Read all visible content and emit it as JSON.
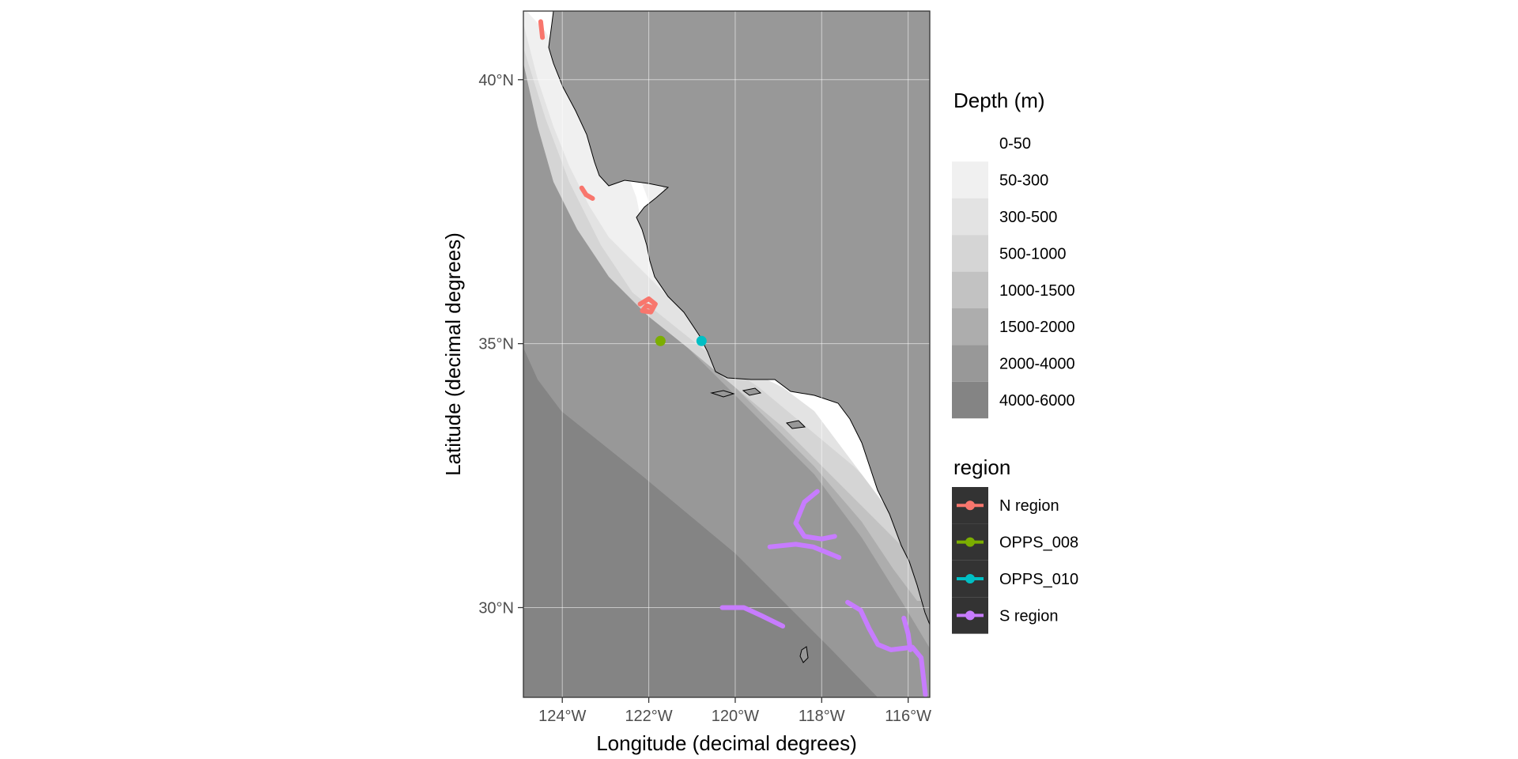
{
  "chart_data": {
    "type": "map",
    "xlabel": "Longitude (decimal degrees)",
    "ylabel": "Latitude (decimal degrees)",
    "xlim": [
      -124.9,
      -115.5
    ],
    "ylim": [
      28.3,
      41.3
    ],
    "x_ticks": [
      {
        "value": -124,
        "label": "124°W"
      },
      {
        "value": -122,
        "label": "122°W"
      },
      {
        "value": -120,
        "label": "120°W"
      },
      {
        "value": -118,
        "label": "118°W"
      },
      {
        "value": -116,
        "label": "116°W"
      }
    ],
    "y_ticks": [
      {
        "value": 30,
        "label": "30°N"
      },
      {
        "value": 35,
        "label": "35°N"
      },
      {
        "value": 40,
        "label": "40°N"
      }
    ],
    "grid": true,
    "depth_legend": {
      "title": "Depth (m)",
      "placement": "right",
      "classes": [
        {
          "label": "0-50",
          "color": "#ffffff"
        },
        {
          "label": "50-300",
          "color": "#f0f0f0"
        },
        {
          "label": "300-500",
          "color": "#e3e3e3"
        },
        {
          "label": "500-1000",
          "color": "#d5d5d5"
        },
        {
          "label": "1000-1500",
          "color": "#c2c2c2"
        },
        {
          "label": "1500-2000",
          "color": "#adadad"
        },
        {
          "label": "2000-4000",
          "color": "#989898"
        },
        {
          "label": "4000-6000",
          "color": "#848484"
        }
      ]
    },
    "land_color": "#989898",
    "region_legend": {
      "title": "region",
      "placement": "right",
      "background": "#333333",
      "series": [
        {
          "name": "N region",
          "color": "#F8766D",
          "tracks": [
            [
              [
                -124.5,
                41.1
              ],
              [
                -124.48,
                40.95
              ],
              [
                -124.46,
                40.8
              ]
            ],
            [
              [
                -123.55,
                37.95
              ],
              [
                -123.45,
                37.82
              ],
              [
                -123.3,
                37.75
              ]
            ],
            [
              [
                -122.2,
                35.75
              ],
              [
                -122.0,
                35.85
              ],
              [
                -121.85,
                35.75
              ],
              [
                -121.95,
                35.6
              ],
              [
                -122.15,
                35.62
              ],
              [
                -122.05,
                35.72
              ],
              [
                -121.9,
                35.68
              ]
            ]
          ]
        },
        {
          "name": "OPPS_008",
          "color": "#7CAE00",
          "points": [
            [
              -121.73,
              35.05
            ]
          ]
        },
        {
          "name": "OPPS_010",
          "color": "#00BFC4",
          "points": [
            [
              -120.78,
              35.05
            ]
          ]
        },
        {
          "name": "S region",
          "color": "#C77CFF",
          "tracks": [
            [
              [
                -118.1,
                32.2
              ],
              [
                -118.4,
                32.0
              ],
              [
                -118.6,
                31.6
              ],
              [
                -118.4,
                31.35
              ],
              [
                -118.0,
                31.3
              ],
              [
                -117.7,
                31.35
              ]
            ],
            [
              [
                -119.2,
                31.15
              ],
              [
                -118.6,
                31.2
              ],
              [
                -118.2,
                31.15
              ],
              [
                -117.9,
                31.05
              ],
              [
                -117.6,
                30.95
              ]
            ],
            [
              [
                -120.3,
                30.0
              ],
              [
                -119.8,
                30.0
              ],
              [
                -119.4,
                29.85
              ],
              [
                -118.9,
                29.65
              ]
            ],
            [
              [
                -117.4,
                30.1
              ],
              [
                -117.1,
                29.95
              ],
              [
                -116.9,
                29.6
              ],
              [
                -116.7,
                29.3
              ],
              [
                -116.4,
                29.2
              ],
              [
                -115.9,
                29.25
              ],
              [
                -115.7,
                29.05
              ],
              [
                -115.65,
                28.7
              ],
              [
                -115.6,
                28.35
              ]
            ],
            [
              [
                -116.1,
                29.8
              ],
              [
                -116.0,
                29.5
              ],
              [
                -115.95,
                29.2
              ]
            ]
          ]
        }
      ]
    }
  }
}
